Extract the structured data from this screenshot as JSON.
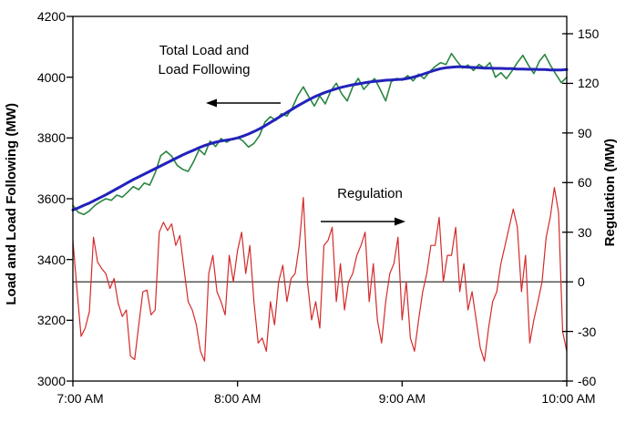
{
  "chart_data": {
    "type": "line",
    "title": "",
    "background_color": "#ffffff",
    "axis_color": "#000000",
    "x_axis": {
      "tick_labels": [
        "7:00 AM",
        "8:00 AM",
        "9:00 AM",
        "10:00 AM"
      ],
      "tick_minutes": [
        0,
        60,
        120,
        180
      ],
      "range_minutes": [
        0,
        180
      ],
      "grid": false
    },
    "left_axis": {
      "title": "Load and Load Following (MW)",
      "tick_labels": [
        "4200",
        "4000",
        "3800",
        "3600",
        "3400",
        "3200",
        "3000"
      ],
      "range": [
        3000,
        4200
      ],
      "grid": false
    },
    "right_axis": {
      "title": "Regulation (MW)",
      "tick_labels": [
        "150",
        "120",
        "90",
        "60",
        "30",
        "0",
        "-30",
        "-60"
      ],
      "range": [
        -60,
        150
      ],
      "zero_line": true,
      "grid": false
    },
    "annotations": [
      {
        "line1": "Total Load and",
        "line2": "Load Following",
        "arrow_direction": "left"
      },
      {
        "line1": "Regulation",
        "line2": "",
        "arrow_direction": "right"
      }
    ],
    "series": [
      {
        "name": "Total Load",
        "axis": "left",
        "color": "#2a8640",
        "width": 1.6,
        "start_minute": 0,
        "step_min": 2,
        "values": [
          3578,
          3555,
          3548,
          3560,
          3578,
          3590,
          3600,
          3595,
          3612,
          3605,
          3622,
          3640,
          3630,
          3652,
          3645,
          3685,
          3742,
          3756,
          3740,
          3710,
          3697,
          3690,
          3722,
          3762,
          3745,
          3790,
          3772,
          3798,
          3786,
          3796,
          3802,
          3790,
          3770,
          3782,
          3808,
          3852,
          3870,
          3858,
          3880,
          3872,
          3900,
          3940,
          3968,
          3935,
          3905,
          3938,
          3912,
          3955,
          3980,
          3945,
          3922,
          3968,
          3996,
          3960,
          3980,
          3995,
          3960,
          3922,
          3985,
          3996,
          3990,
          4005,
          3988,
          4010,
          3995,
          4018,
          4035,
          4048,
          4042,
          4078,
          4052,
          4030,
          4040,
          4022,
          4042,
          4030,
          4048,
          4000,
          4015,
          3995,
          4020,
          4048,
          4072,
          4040,
          4012,
          4052,
          4075,
          4040,
          4010,
          3982,
          4000
        ]
      },
      {
        "name": "Load Following",
        "axis": "left",
        "color": "#2222bb",
        "width": 3,
        "start_minute": 0,
        "step_min": 2,
        "values": [
          3563,
          3570,
          3578,
          3586,
          3595,
          3604,
          3613,
          3623,
          3633,
          3643,
          3653,
          3663,
          3672,
          3681,
          3690,
          3699,
          3708,
          3717,
          3726,
          3735,
          3744,
          3752,
          3760,
          3768,
          3775,
          3781,
          3786,
          3790,
          3793,
          3796,
          3800,
          3806,
          3813,
          3821,
          3830,
          3840,
          3851,
          3862,
          3873,
          3884,
          3895,
          3906,
          3916,
          3926,
          3935,
          3943,
          3950,
          3956,
          3962,
          3967,
          3971,
          3975,
          3978,
          3981,
          3984,
          3986,
          3988,
          3990,
          3991,
          3992,
          3993,
          3996,
          4000,
          4005,
          4011,
          4017,
          4023,
          4028,
          4031,
          4033,
          4034,
          4034,
          4033,
          4032,
          4031,
          4030,
          4030,
          4029,
          4029,
          4028,
          4028,
          4027,
          4027,
          4026,
          4026,
          4025,
          4025,
          4024,
          4024,
          4024,
          4025
        ]
      },
      {
        "name": "Regulation",
        "axis": "right",
        "color": "#d42a2a",
        "width": 1.2,
        "start_minute": 0,
        "step_min": 1.5,
        "values": [
          25,
          -5,
          -33,
          -28,
          -18,
          27,
          12,
          8,
          5,
          -4,
          2,
          -13,
          -21,
          -17,
          -45,
          -47,
          -26,
          -6,
          -5,
          -20,
          -17,
          30,
          36,
          31,
          35,
          22,
          28,
          8,
          -12,
          -17,
          -26,
          -42,
          -48,
          5,
          16,
          -6,
          -12,
          -20,
          16,
          0,
          19,
          30,
          5,
          22,
          -12,
          -37,
          -34,
          -42,
          -12,
          -26,
          0,
          10,
          -12,
          2,
          5,
          22,
          51,
          0,
          -23,
          -12,
          -28,
          22,
          25,
          33,
          -12,
          11,
          -17,
          0,
          5,
          16,
          22,
          30,
          -12,
          11,
          -23,
          -37,
          -12,
          5,
          11,
          27,
          -23,
          0,
          -34,
          -42,
          -23,
          -6,
          5,
          22,
          22,
          39,
          0,
          16,
          16,
          33,
          -6,
          11,
          -17,
          -6,
          -23,
          -40,
          -48,
          -28,
          -12,
          -6,
          11,
          22,
          33,
          44,
          33,
          -6,
          16,
          -37,
          -23,
          -12,
          0,
          27,
          39,
          57,
          42,
          -30,
          -42
        ]
      }
    ]
  }
}
